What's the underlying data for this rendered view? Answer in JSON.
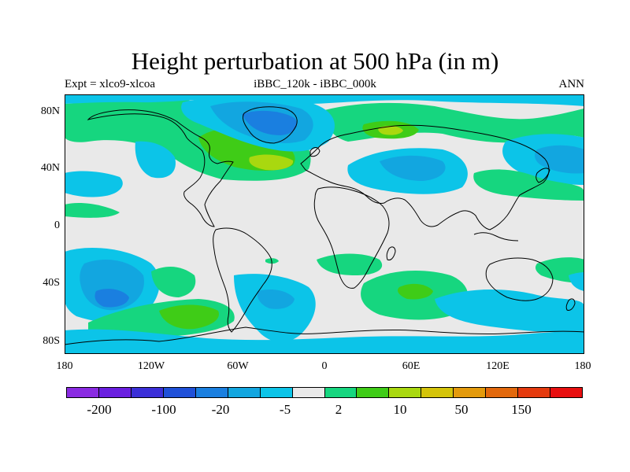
{
  "title": "Height perturbation at 500 hPa (in m)",
  "subtitle_left": "Expt = xlco9-xlcoa",
  "subtitle_center": "iBBC_120k - iBBC_000k",
  "subtitle_right": "ANN",
  "y_ticks": [
    "80N",
    "40N",
    "0",
    "40S",
    "80S"
  ],
  "x_ticks": [
    "180",
    "120W",
    "60W",
    "0",
    "60E",
    "120E",
    "180"
  ],
  "colorbar": {
    "colors": [
      "#8a2be2",
      "#6a1fe0",
      "#3b2fd8",
      "#1f50d8",
      "#1a7fe0",
      "#12a6e0",
      "#0cc4e8",
      "#e9e9e9",
      "#16d67f",
      "#3fcc17",
      "#a9d80f",
      "#d4c40a",
      "#e39a0c",
      "#e2680c",
      "#e43a0e",
      "#e80f10"
    ],
    "labels": [
      "-200",
      "-100",
      "-20",
      "-5",
      "2",
      "10",
      "50",
      "150"
    ]
  },
  "palette": {
    "neutral": "#e9e9e9",
    "light_blue": "#0cc4e8",
    "blue": "#12a6e0",
    "dark_blue": "#1a7fe0",
    "green": "#16d67f",
    "bright_green": "#3fcc17",
    "yellow_green": "#a9d80f"
  }
}
